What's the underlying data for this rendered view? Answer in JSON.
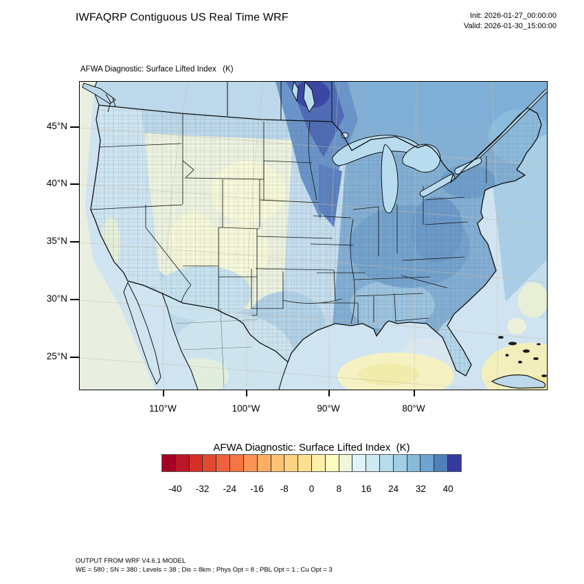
{
  "header": {
    "title": "IWFAQRP Contiguous US Real Time WRF",
    "init": "Init: 2026-01-27_00:00:00",
    "valid": "Valid: 2026-01-30_15:00:00"
  },
  "map": {
    "subtitle": "AFWA Diagnostic: Surface Lifted Index   (K)",
    "lat_ticks": [
      "45°N",
      "40°N",
      "35°N",
      "30°N",
      "25°N"
    ],
    "lon_ticks": [
      "110°W",
      "100°W",
      "90°W",
      "80°W"
    ]
  },
  "colorbar": {
    "title": "AFWA Diagnostic: Surface Lifted Index  (K)",
    "tick_labels": [
      "-40",
      "-32",
      "-24",
      "-16",
      "-8",
      "0",
      "8",
      "16",
      "24",
      "32",
      "40"
    ],
    "colors": [
      "#a50026",
      "#bb1726",
      "#d73027",
      "#e04a31",
      "#ee613d",
      "#f57547",
      "#fb9256",
      "#fdae61",
      "#fec272",
      "#fed283",
      "#fee090",
      "#feefa9",
      "#fdfdc0",
      "#eef7da",
      "#e0f3f8",
      "#cfe9f2",
      "#b7dceb",
      "#a0cee4",
      "#85bad9",
      "#6ea4cf",
      "#507fba",
      "#353c9d"
    ]
  },
  "footer": {
    "line1": "OUTPUT FROM WRF V4.6.1 MODEL",
    "line2": "WE = 580 ; SN = 380 ; Levels = 38 ; Dis = 8km ; Phys Opt = 8 ; PBL Opt = 1 ; Cu Opt = 3"
  }
}
